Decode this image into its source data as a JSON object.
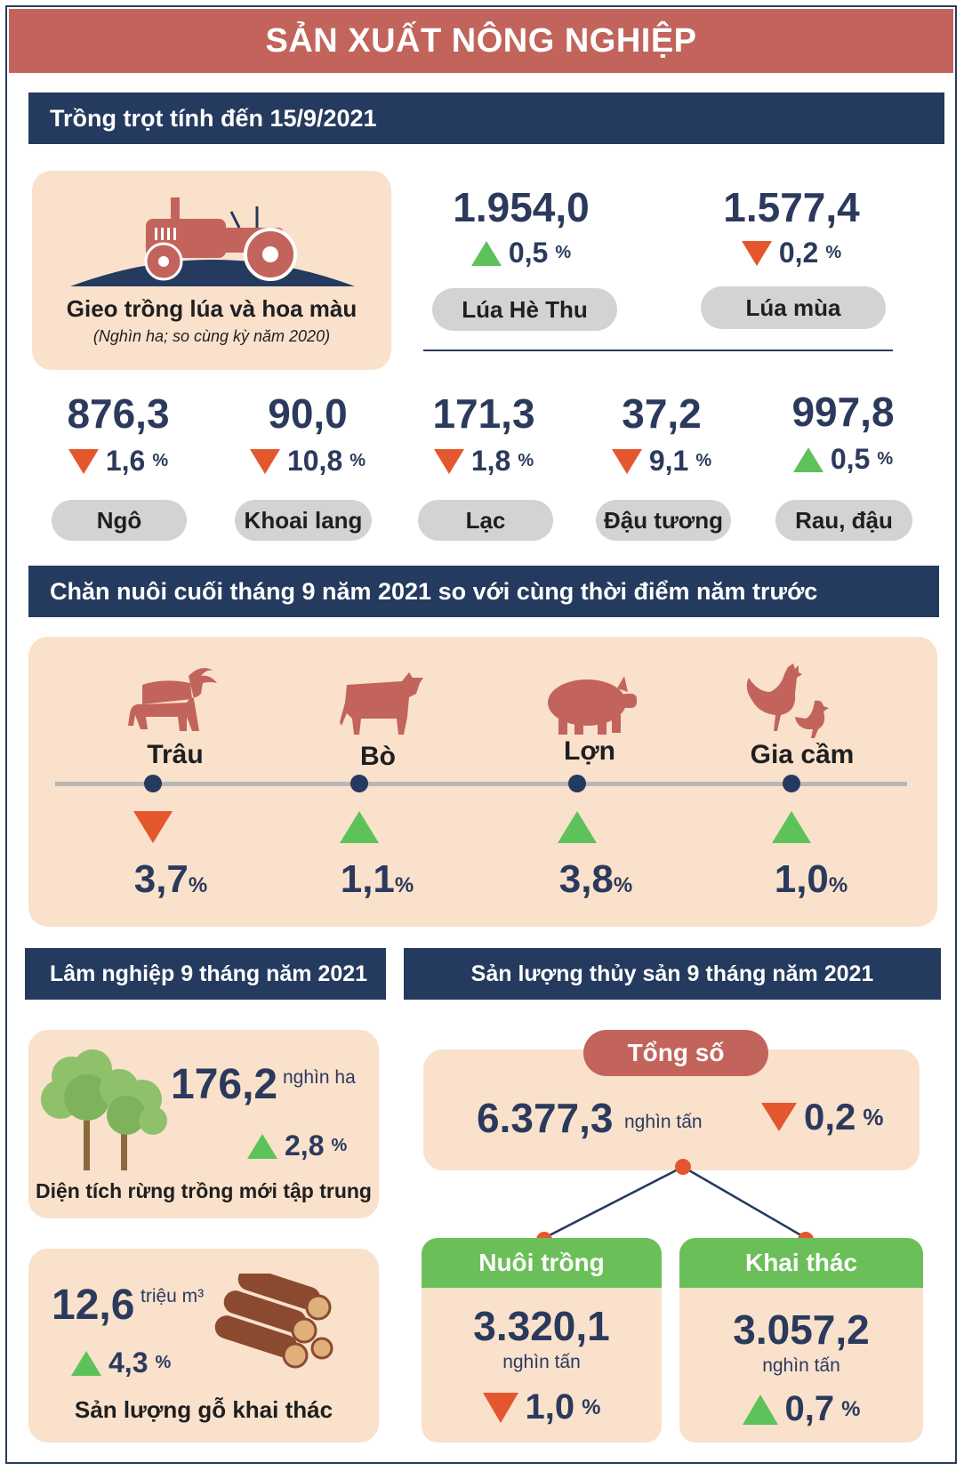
{
  "title": "SẢN XUẤT NÔNG NGHIỆP",
  "colors": {
    "title_bg": "#c2645c",
    "section_bg": "#243a5e",
    "card_bg": "#f9e1cc",
    "up": "#5ec25a",
    "down": "#e4572e",
    "pill": "#d1d3d4",
    "green_head": "#6bbf59"
  },
  "crops": {
    "header": "Trồng trọt tính đến 15/9/2021",
    "intro_title": "Gieo trồng lúa và hoa màu",
    "intro_sub": "(Nghìn ha; so cùng kỳ năm 2020)",
    "top": [
      {
        "value": "1.954,0",
        "dir": "up",
        "change": "0,5",
        "pct": "%",
        "label": "Lúa Hè Thu"
      },
      {
        "value": "1.577,4",
        "dir": "down",
        "change": "0,2",
        "pct": "%",
        "label": "Lúa mùa"
      }
    ],
    "row": [
      {
        "value": "876,3",
        "dir": "down",
        "change": "1,6",
        "pct": "%",
        "label": "Ngô"
      },
      {
        "value": "90,0",
        "dir": "down",
        "change": "10,8",
        "pct": "%",
        "label": "Khoai lang"
      },
      {
        "value": "171,3",
        "dir": "down",
        "change": "1,8",
        "pct": "%",
        "label": "Lạc"
      },
      {
        "value": "37,2",
        "dir": "down",
        "change": "9,1",
        "pct": "%",
        "label": "Đậu tương"
      },
      {
        "value": "997,8",
        "dir": "up",
        "change": "0,5",
        "pct": "%",
        "label": "Rau, đậu"
      }
    ]
  },
  "livestock": {
    "header": "Chăn nuôi cuối tháng 9 năm 2021 so với cùng thời điểm năm trước",
    "items": [
      {
        "label": "Trâu",
        "icon": "buffalo-icon",
        "dir": "down",
        "change": "3,7",
        "pct": "%"
      },
      {
        "label": "Bò",
        "icon": "cow-icon",
        "dir": "up",
        "change": "1,1",
        "pct": "%"
      },
      {
        "label": "Lợn",
        "icon": "pig-icon",
        "dir": "up",
        "change": "3,8",
        "pct": "%"
      },
      {
        "label": "Gia cầm",
        "icon": "poultry-icon",
        "dir": "up",
        "change": "1,0",
        "pct": "%"
      }
    ]
  },
  "forestry": {
    "header": "Lâm nghiệp 9 tháng năm 2021",
    "area": {
      "value": "176,2",
      "unit": "nghìn ha",
      "dir": "up",
      "change": "2,8",
      "pct": "%",
      "label": "Diện tích rừng trồng mới tập trung"
    },
    "wood": {
      "value": "12,6",
      "unit": "triệu m³",
      "dir": "up",
      "change": "4,3",
      "pct": "%",
      "label": "Sản lượng gỗ khai thác"
    }
  },
  "fishery": {
    "header": "Sản lượng thủy sản 9 tháng năm 2021",
    "total_label": "Tổng số",
    "total_value": "6.377,3",
    "total_unit": "nghìn tấn",
    "total_dir": "down",
    "total_change": "0,2",
    "total_pct": "%",
    "branches": [
      {
        "label": "Nuôi trồng",
        "value": "3.320,1",
        "unit": "nghìn tấn",
        "dir": "down",
        "change": "1,0",
        "pct": "%"
      },
      {
        "label": "Khai thác",
        "value": "3.057,2",
        "unit": "nghìn tấn",
        "dir": "up",
        "change": "0,7",
        "pct": "%"
      }
    ]
  }
}
